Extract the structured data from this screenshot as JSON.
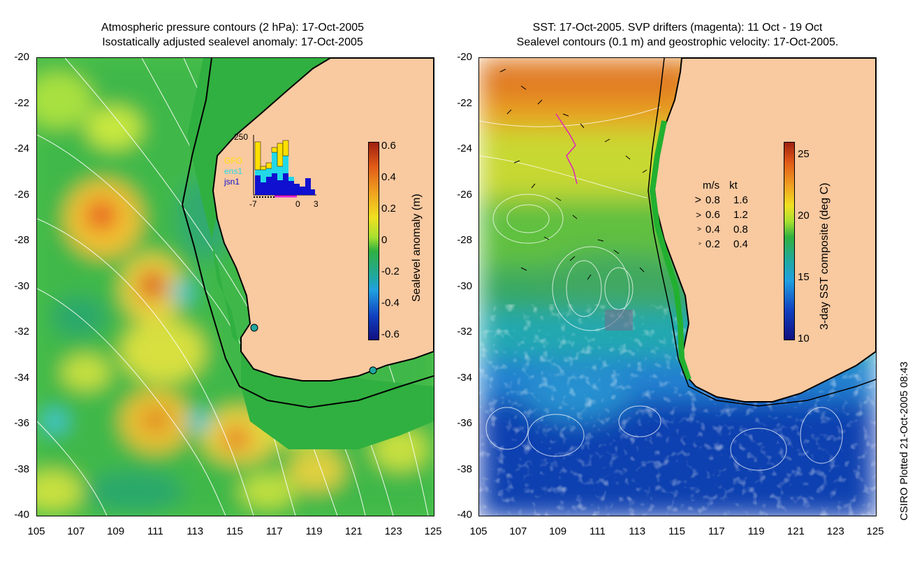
{
  "left_panel": {
    "title_line1": "Atmospheric pressure contours (2 hPa): 17-Oct-2005",
    "title_line2": "Isostatically adjusted sealevel anomaly: 17-Oct-2005",
    "colorbar_label": "Sealevel anomaly (m)",
    "colorbar_ticks": [
      "0.6",
      "0.4",
      "0.2",
      "0",
      "-0.2",
      "-0.4",
      "-0.6"
    ],
    "inset": {
      "ymax_label": "250",
      "legend": [
        "GFO",
        "ens1",
        "jsn1"
      ],
      "legend_colors": [
        "#ffe000",
        "#22d8e8",
        "#1010d0"
      ],
      "xticks": [
        "-7",
        "0",
        "3"
      ]
    }
  },
  "right_panel": {
    "title_line1": "SST: 17-Oct-2005. SVP drifters (magenta): 11 Oct - 19 Oct",
    "title_line2": "Sealevel contours (0.1 m) and geostrophic velocity: 17-Oct-2005.",
    "colorbar_label": "3-day SST composite (deg C)",
    "colorbar_ticks": [
      "25",
      "20",
      "15",
      "10"
    ],
    "velocity_legend": {
      "header_ms": "m/s",
      "header_kt": "kt",
      "rows": [
        {
          "ms": "0.8",
          "kt": "1.6"
        },
        {
          "ms": "0.6",
          "kt": "1.2"
        },
        {
          "ms": "0.4",
          "kt": "0.8"
        },
        {
          "ms": "0.2",
          "kt": "0.4"
        }
      ]
    }
  },
  "axes": {
    "lat_ticks": [
      "-20",
      "-22",
      "-24",
      "-26",
      "-28",
      "-30",
      "-32",
      "-34",
      "-36",
      "-38",
      "-40"
    ],
    "lon_ticks": [
      "105",
      "107",
      "109",
      "111",
      "113",
      "115",
      "117",
      "119",
      "121",
      "123",
      "125"
    ]
  },
  "side_label": "CSIRO Plotted 21-Oct-2005 08:43",
  "colors": {
    "land": "#f9c9a0",
    "coast": "#000000",
    "shelf": "#22b030"
  }
}
